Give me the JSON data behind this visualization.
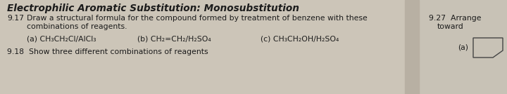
{
  "title": "Electrophilic Aromatic Substitution: Monosubstitution",
  "q917_num": "9.17",
  "q917_text": "Draw a structural formula for the compound formed by treatment of benzene with these",
  "q917_line2": "combinations of reagents.",
  "items_a": "(a) CH₃CH₂Cl/AlCl₃",
  "items_b": "(b) CH₂=CH₂/H₂SO₄",
  "items_c": "(c) CH₃CH₂OH/H₂SO₄",
  "q918_text": "9.18  Show three different combinations of reagents",
  "right1": "9.27  Arrange",
  "right2": "toward",
  "right_a": "(a)",
  "bg_left": "#ccc5b8",
  "bg_right": "#c8c2b6",
  "text_color": "#1c1c1c",
  "spine_color": "#9e9790",
  "title_fontsize": 9.8,
  "body_fontsize": 7.8,
  "item_fontsize": 7.8
}
